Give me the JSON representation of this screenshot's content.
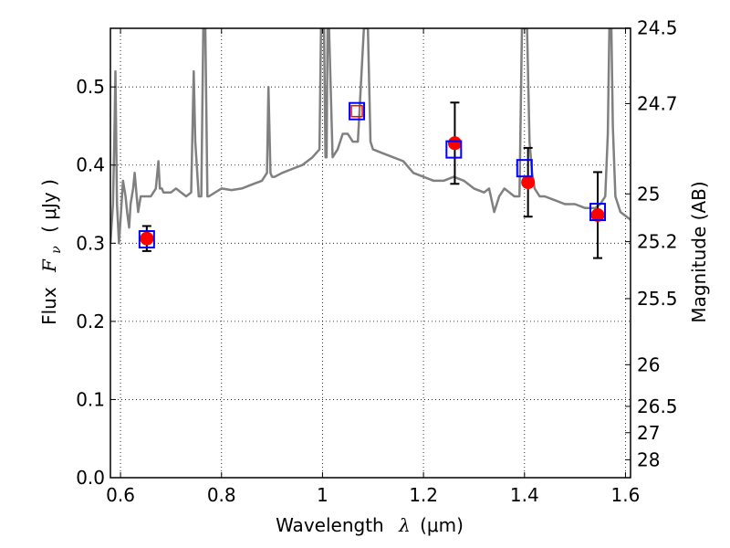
{
  "chart_data": {
    "type": "scatter",
    "xlabel_prefix": "Wavelength",
    "xlabel_symbol": "λ",
    "xlabel_unit": "(μm)",
    "ylabel_prefix": "Flux",
    "ylabel_symbol": "F",
    "ylabel_subscript": "ν",
    "ylabel_unit": "( μJy )",
    "y2label": "Magnitude (AB)",
    "xlim": [
      0.58,
      1.61
    ],
    "ylim": [
      0.0,
      0.575
    ],
    "x_ticks": [
      {
        "value": 0.6,
        "label": "0.6"
      },
      {
        "value": 0.8,
        "label": "0.8"
      },
      {
        "value": 1.0,
        "label": "1"
      },
      {
        "value": 1.2,
        "label": "1.2"
      },
      {
        "value": 1.4,
        "label": "1.4"
      },
      {
        "value": 1.6,
        "label": "1.6"
      }
    ],
    "y_ticks": [
      {
        "value": 0.0,
        "label": "0.0"
      },
      {
        "value": 0.1,
        "label": "0.1"
      },
      {
        "value": 0.2,
        "label": "0.2"
      },
      {
        "value": 0.3,
        "label": "0.3"
      },
      {
        "value": 0.4,
        "label": "0.4"
      },
      {
        "value": 0.5,
        "label": "0.5"
      }
    ],
    "y2_ticks": [
      {
        "value": 24.5,
        "label": "24.5"
      },
      {
        "value": 24.7,
        "label": "24.7"
      },
      {
        "value": 25.0,
        "label": "25"
      },
      {
        "value": 25.2,
        "label": "25.2"
      },
      {
        "value": 25.5,
        "label": "25.5"
      },
      {
        "value": 26.0,
        "label": "26"
      },
      {
        "value": 26.5,
        "label": "26.5"
      },
      {
        "value": 27.0,
        "label": "27"
      },
      {
        "value": 28.0,
        "label": "28"
      }
    ],
    "grid": true,
    "spectrum": {
      "color": "#808080",
      "x": [
        0.58,
        0.585,
        0.588,
        0.59,
        0.593,
        0.597,
        0.6,
        0.605,
        0.61,
        0.613,
        0.617,
        0.62,
        0.625,
        0.628,
        0.632,
        0.635,
        0.64,
        0.65,
        0.66,
        0.67,
        0.675,
        0.678,
        0.682,
        0.685,
        0.7,
        0.71,
        0.72,
        0.73,
        0.74,
        0.742,
        0.745,
        0.748,
        0.755,
        0.76,
        0.764,
        0.766,
        0.768,
        0.772,
        0.775,
        0.8,
        0.82,
        0.84,
        0.86,
        0.88,
        0.89,
        0.893,
        0.897,
        0.9,
        0.905,
        0.92,
        0.94,
        0.96,
        0.98,
        0.994,
        0.997,
        1.0,
        1.003,
        1.006,
        1.008,
        1.01,
        1.013,
        1.02,
        1.03,
        1.04,
        1.05,
        1.06,
        1.07,
        1.082,
        1.085,
        1.09,
        1.095,
        1.1,
        1.12,
        1.14,
        1.16,
        1.18,
        1.2,
        1.22,
        1.24,
        1.26,
        1.28,
        1.3,
        1.32,
        1.33,
        1.34,
        1.35,
        1.36,
        1.38,
        1.39,
        1.395,
        1.4,
        1.405,
        1.41,
        1.415,
        1.42,
        1.43,
        1.44,
        1.46,
        1.48,
        1.5,
        1.52,
        1.54,
        1.55,
        1.56,
        1.565,
        1.568,
        1.572,
        1.575,
        1.58,
        1.59,
        1.6,
        1.61
      ],
      "y": [
        0.3,
        0.35,
        0.44,
        0.52,
        0.35,
        0.3,
        0.33,
        0.38,
        0.36,
        0.34,
        0.32,
        0.35,
        0.37,
        0.39,
        0.36,
        0.34,
        0.36,
        0.36,
        0.36,
        0.37,
        0.405,
        0.37,
        0.37,
        0.365,
        0.365,
        0.37,
        0.365,
        0.36,
        0.365,
        0.43,
        0.52,
        0.43,
        0.36,
        0.36,
        0.575,
        0.575,
        0.575,
        0.36,
        0.36,
        0.37,
        0.368,
        0.37,
        0.375,
        0.38,
        0.39,
        0.5,
        0.39,
        0.385,
        0.385,
        0.39,
        0.395,
        0.4,
        0.41,
        0.42,
        0.575,
        0.575,
        0.575,
        0.41,
        0.41,
        0.575,
        0.575,
        0.41,
        0.42,
        0.44,
        0.44,
        0.43,
        0.43,
        0.575,
        0.575,
        0.575,
        0.43,
        0.42,
        0.415,
        0.41,
        0.405,
        0.39,
        0.385,
        0.38,
        0.38,
        0.385,
        0.38,
        0.37,
        0.365,
        0.37,
        0.34,
        0.36,
        0.37,
        0.36,
        0.36,
        0.575,
        0.575,
        0.575,
        0.43,
        0.39,
        0.37,
        0.36,
        0.36,
        0.355,
        0.35,
        0.35,
        0.345,
        0.345,
        0.35,
        0.36,
        0.44,
        0.575,
        0.575,
        0.45,
        0.36,
        0.34,
        0.335,
        0.33
      ]
    },
    "filled_markers": {
      "color": "#ff0000",
      "x": [
        0.652,
        1.262,
        1.407,
        1.545
      ],
      "y": [
        0.306,
        0.428,
        0.378,
        0.336
      ],
      "yerr": [
        0.016,
        0.052,
        0.044,
        0.055
      ]
    },
    "model_boxes": {
      "stroke": "#0000ff",
      "x": [
        0.652,
        1.068,
        1.26,
        1.4,
        1.545
      ],
      "y": [
        0.305,
        0.469,
        0.42,
        0.396,
        0.34
      ]
    },
    "inner_box": {
      "stroke": "#ff0000",
      "x": 1.068,
      "y": 0.469
    }
  }
}
